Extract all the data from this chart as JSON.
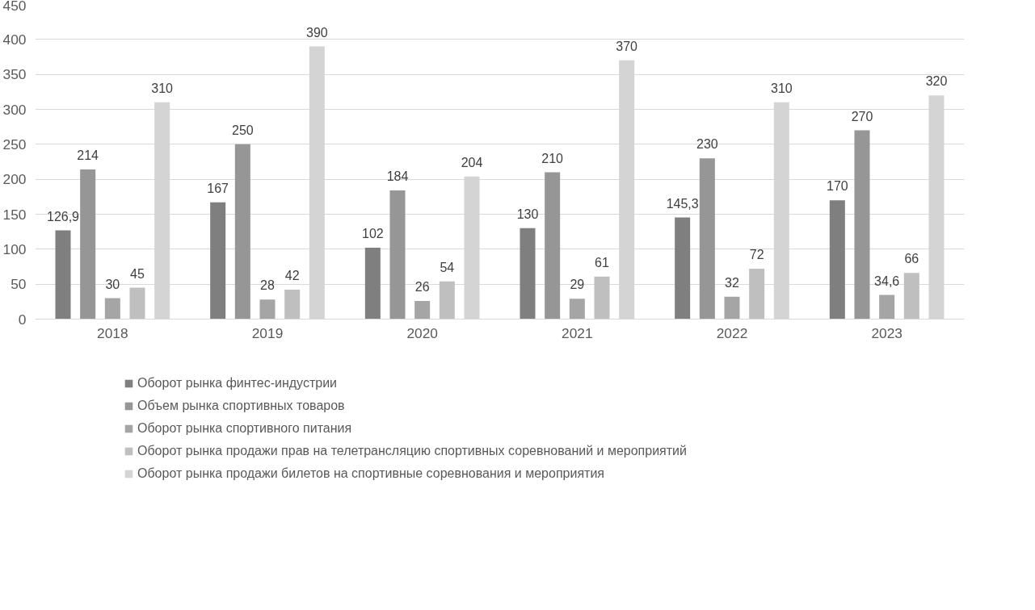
{
  "chart_data": {
    "type": "bar",
    "categories": [
      "2018",
      "2019",
      "2020",
      "2021",
      "2022",
      "2023"
    ],
    "series": [
      {
        "name": "Оборот рынка финтес-индустрии",
        "color": "#7f7f7f",
        "values": [
          126.9,
          167,
          102,
          130,
          145.3,
          170
        ],
        "value_labels": [
          "126,9",
          "167",
          "102",
          "130",
          "145,3",
          "170"
        ]
      },
      {
        "name": "Объем рынка спортивных товаров",
        "color": "#969696",
        "values": [
          214,
          250,
          184,
          210,
          230,
          270
        ],
        "value_labels": [
          "214",
          "250",
          "184",
          "210",
          "230",
          "270"
        ]
      },
      {
        "name": "Оборот рынка спортивного питания",
        "color": "#a5a5a5",
        "values": [
          30,
          28,
          26,
          29,
          32,
          34.6
        ],
        "value_labels": [
          "30",
          "28",
          "26",
          "29",
          "32",
          "34,6"
        ]
      },
      {
        "name": "Оборот рынка продажи прав на телетрансляцию спортивных соревнований и мероприятий",
        "color": "#bfbfbf",
        "values": [
          45,
          42,
          54,
          61,
          72,
          66
        ],
        "value_labels": [
          "45",
          "42",
          "54",
          "61",
          "72",
          "66"
        ]
      },
      {
        "name": "Оборот рынка продажи билетов на спортивные соревнования и мероприятия",
        "color": "#d4d4d4",
        "values": [
          310,
          390,
          204,
          370,
          310,
          320
        ],
        "value_labels": [
          "310",
          "390",
          "204",
          "370",
          "310",
          "320"
        ]
      }
    ],
    "ylim": [
      0,
      450
    ],
    "yticks": [
      0,
      50,
      100,
      150,
      200,
      250,
      300,
      350,
      400,
      450
    ],
    "grid": "y",
    "legend": "bottom"
  }
}
